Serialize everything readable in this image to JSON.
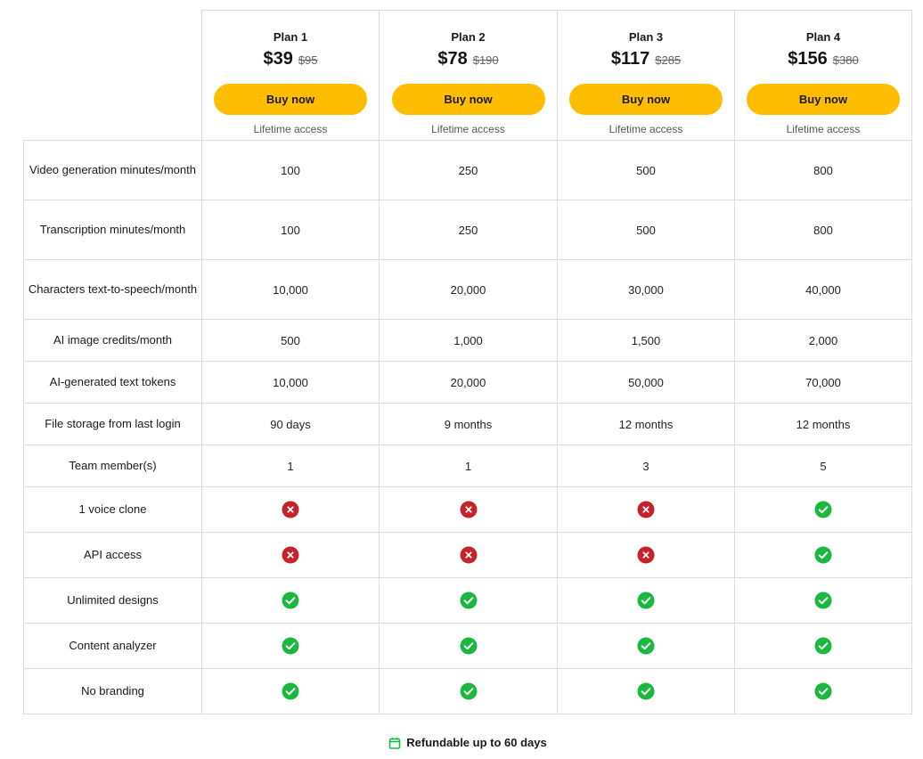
{
  "plans": [
    {
      "name": "Plan 1",
      "price": "$39",
      "old_price": "$95",
      "buy_label": "Buy now",
      "access": "Lifetime access"
    },
    {
      "name": "Plan 2",
      "price": "$78",
      "old_price": "$190",
      "buy_label": "Buy now",
      "access": "Lifetime access"
    },
    {
      "name": "Plan 3",
      "price": "$117",
      "old_price": "$285",
      "buy_label": "Buy now",
      "access": "Lifetime access"
    },
    {
      "name": "Plan 4",
      "price": "$156",
      "old_price": "$380",
      "buy_label": "Buy now",
      "access": "Lifetime access"
    }
  ],
  "features": [
    {
      "label": "Video generation minutes/month",
      "values": [
        "100",
        "250",
        "500",
        "800"
      ]
    },
    {
      "label": "Transcription minutes/month",
      "values": [
        "100",
        "250",
        "500",
        "800"
      ]
    },
    {
      "label": "Characters text-to-speech/month",
      "values": [
        "10,000",
        "20,000",
        "30,000",
        "40,000"
      ]
    },
    {
      "label": "AI image credits/month",
      "values": [
        "500",
        "1,000",
        "1,500",
        "2,000"
      ]
    },
    {
      "label": "AI-generated text tokens",
      "values": [
        "10,000",
        "20,000",
        "50,000",
        "70,000"
      ]
    },
    {
      "label": "File storage from last login",
      "values": [
        "90 days",
        "9 months",
        "12 months",
        "12 months"
      ]
    },
    {
      "label": "Team member(s)",
      "values": [
        "1",
        "1",
        "3",
        "5"
      ]
    },
    {
      "label": "1 voice clone",
      "values": [
        false,
        false,
        false,
        true
      ]
    },
    {
      "label": "API access",
      "values": [
        false,
        false,
        false,
        true
      ]
    },
    {
      "label": "Unlimited designs",
      "values": [
        true,
        true,
        true,
        true
      ]
    },
    {
      "label": "Content analyzer",
      "values": [
        true,
        true,
        true,
        true
      ]
    },
    {
      "label": "No branding",
      "values": [
        true,
        true,
        true,
        true
      ]
    }
  ],
  "icons": {
    "included": "check-circle-icon",
    "excluded": "x-circle-icon",
    "footer": "calendar-icon"
  },
  "colors": {
    "button": "#ffbd00",
    "check": "#1bb83f",
    "cross": "#c5222a",
    "calendar": "#1bb83f"
  },
  "footer": {
    "text": "Refundable up to 60 days"
  }
}
